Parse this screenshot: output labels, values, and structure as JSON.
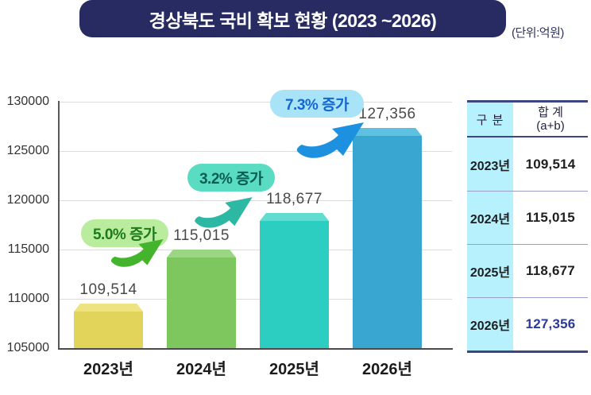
{
  "chart_data": {
    "type": "bar",
    "title": "경상북도 국비 확보 현황 (2023 ~2026)",
    "unit_label": "(단위:억원)",
    "categories": [
      "2023년",
      "2024년",
      "2025년",
      "2026년"
    ],
    "values": [
      109514,
      115015,
      118677,
      127356
    ],
    "value_labels": [
      "109,514",
      "115,015",
      "118,677",
      "127,356"
    ],
    "bar_colors": [
      "#e2d35b",
      "#7dc75e",
      "#2bcec0",
      "#38a6d0"
    ],
    "bar_cap_colors": [
      "#ede381",
      "#9bd685",
      "#63dcd0",
      "#5fc1e2"
    ],
    "ylim": [
      105000,
      130000
    ],
    "ytick_step": 5000,
    "yticks": [
      "105000",
      "110000",
      "115000",
      "120000",
      "125000",
      "130000"
    ],
    "grid": true,
    "legend": "none",
    "annotations": [
      {
        "label": "5.0% 증가",
        "bg": "#b9ec9c",
        "color": "#1d7a1f",
        "arrow_color": "#44b42c"
      },
      {
        "label": "3.2% 증가",
        "bg": "#59dcc2",
        "color": "#0a5d53",
        "arrow_color": "#2cb8a2"
      },
      {
        "label": "7.3% 증가",
        "bg": "#a9e3f7",
        "color": "#1467d2",
        "arrow_color": "#1e90e0"
      }
    ]
  },
  "summary_table": {
    "col1_header": "구 분",
    "col2_header_line1": "합 계",
    "col2_header_line2": "(a+b)",
    "rows": [
      {
        "label": "2023년",
        "value": "109,514",
        "highlight": false
      },
      {
        "label": "2024년",
        "value": "115,015",
        "highlight": false
      },
      {
        "label": "2025년",
        "value": "118,677",
        "highlight": false
      },
      {
        "label": "2026년",
        "value": "127,356",
        "highlight": true
      }
    ],
    "col1_bg": "#b6f1fd",
    "border_color": "#3e4583",
    "highlight_color": "#2b3a97"
  }
}
